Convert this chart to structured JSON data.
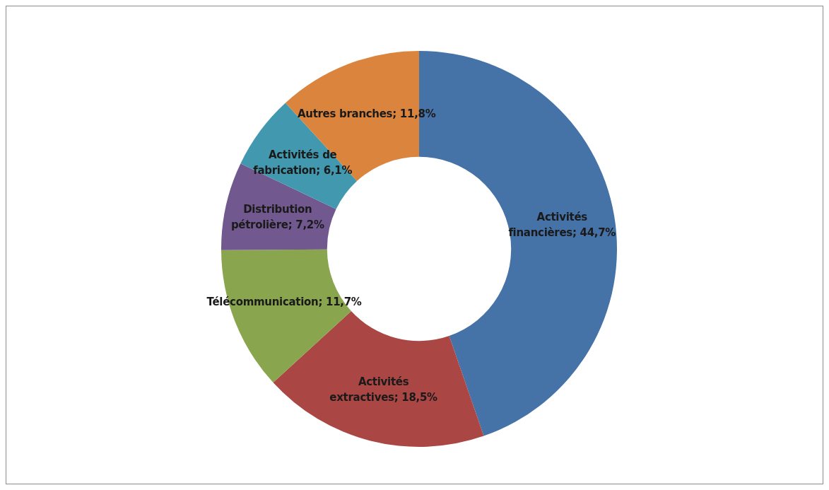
{
  "chart_data": {
    "type": "donut",
    "categories": [
      "Activités financières",
      "Activités extractives",
      "Télécommunication",
      "Distribution pétrolière",
      "Activités de fabrication",
      "Autres branches"
    ],
    "values": [
      44.7,
      18.5,
      11.7,
      7.2,
      6.1,
      11.8
    ],
    "value_labels": [
      "44,7%",
      "18,5%",
      "11,7%",
      "7,2%",
      "6,1%",
      "11,8%"
    ],
    "colors": [
      "#4572a7",
      "#aa4643",
      "#89a54e",
      "#71588f",
      "#4198af",
      "#db843d"
    ]
  }
}
